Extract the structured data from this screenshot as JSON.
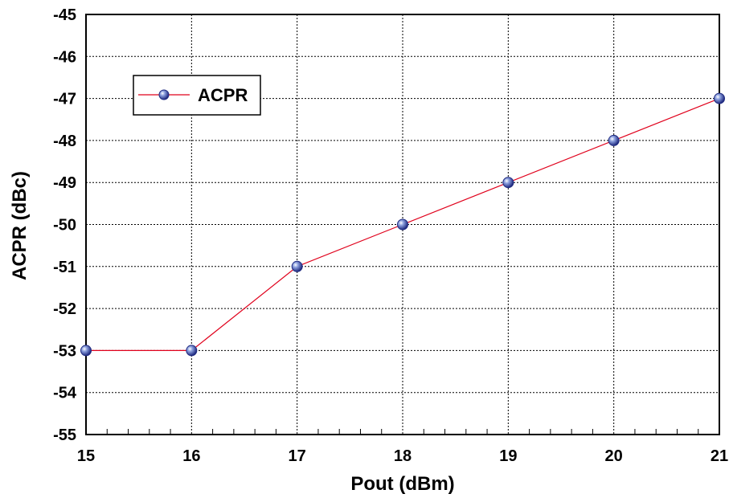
{
  "chart_data": {
    "type": "line",
    "title": "",
    "xlabel": "Pout (dBm)",
    "ylabel": "ACPR (dBc)",
    "xlim": [
      15,
      21
    ],
    "ylim": [
      -55,
      -45
    ],
    "x_ticks": [
      15,
      16,
      17,
      18,
      19,
      20,
      21
    ],
    "y_ticks": [
      -45,
      -46,
      -47,
      -48,
      -49,
      -50,
      -51,
      -52,
      -53,
      -54,
      -55
    ],
    "grid": true,
    "legend": {
      "placement": "top-left",
      "entries": [
        "ACPR"
      ]
    },
    "series": [
      {
        "name": "ACPR",
        "line_color": "#e0001b",
        "marker_color": "#1f2a80",
        "x": [
          15,
          16,
          17,
          18,
          19,
          20,
          21
        ],
        "y": [
          -53,
          -53,
          -51,
          -50,
          -49,
          -48,
          -47
        ]
      }
    ]
  }
}
